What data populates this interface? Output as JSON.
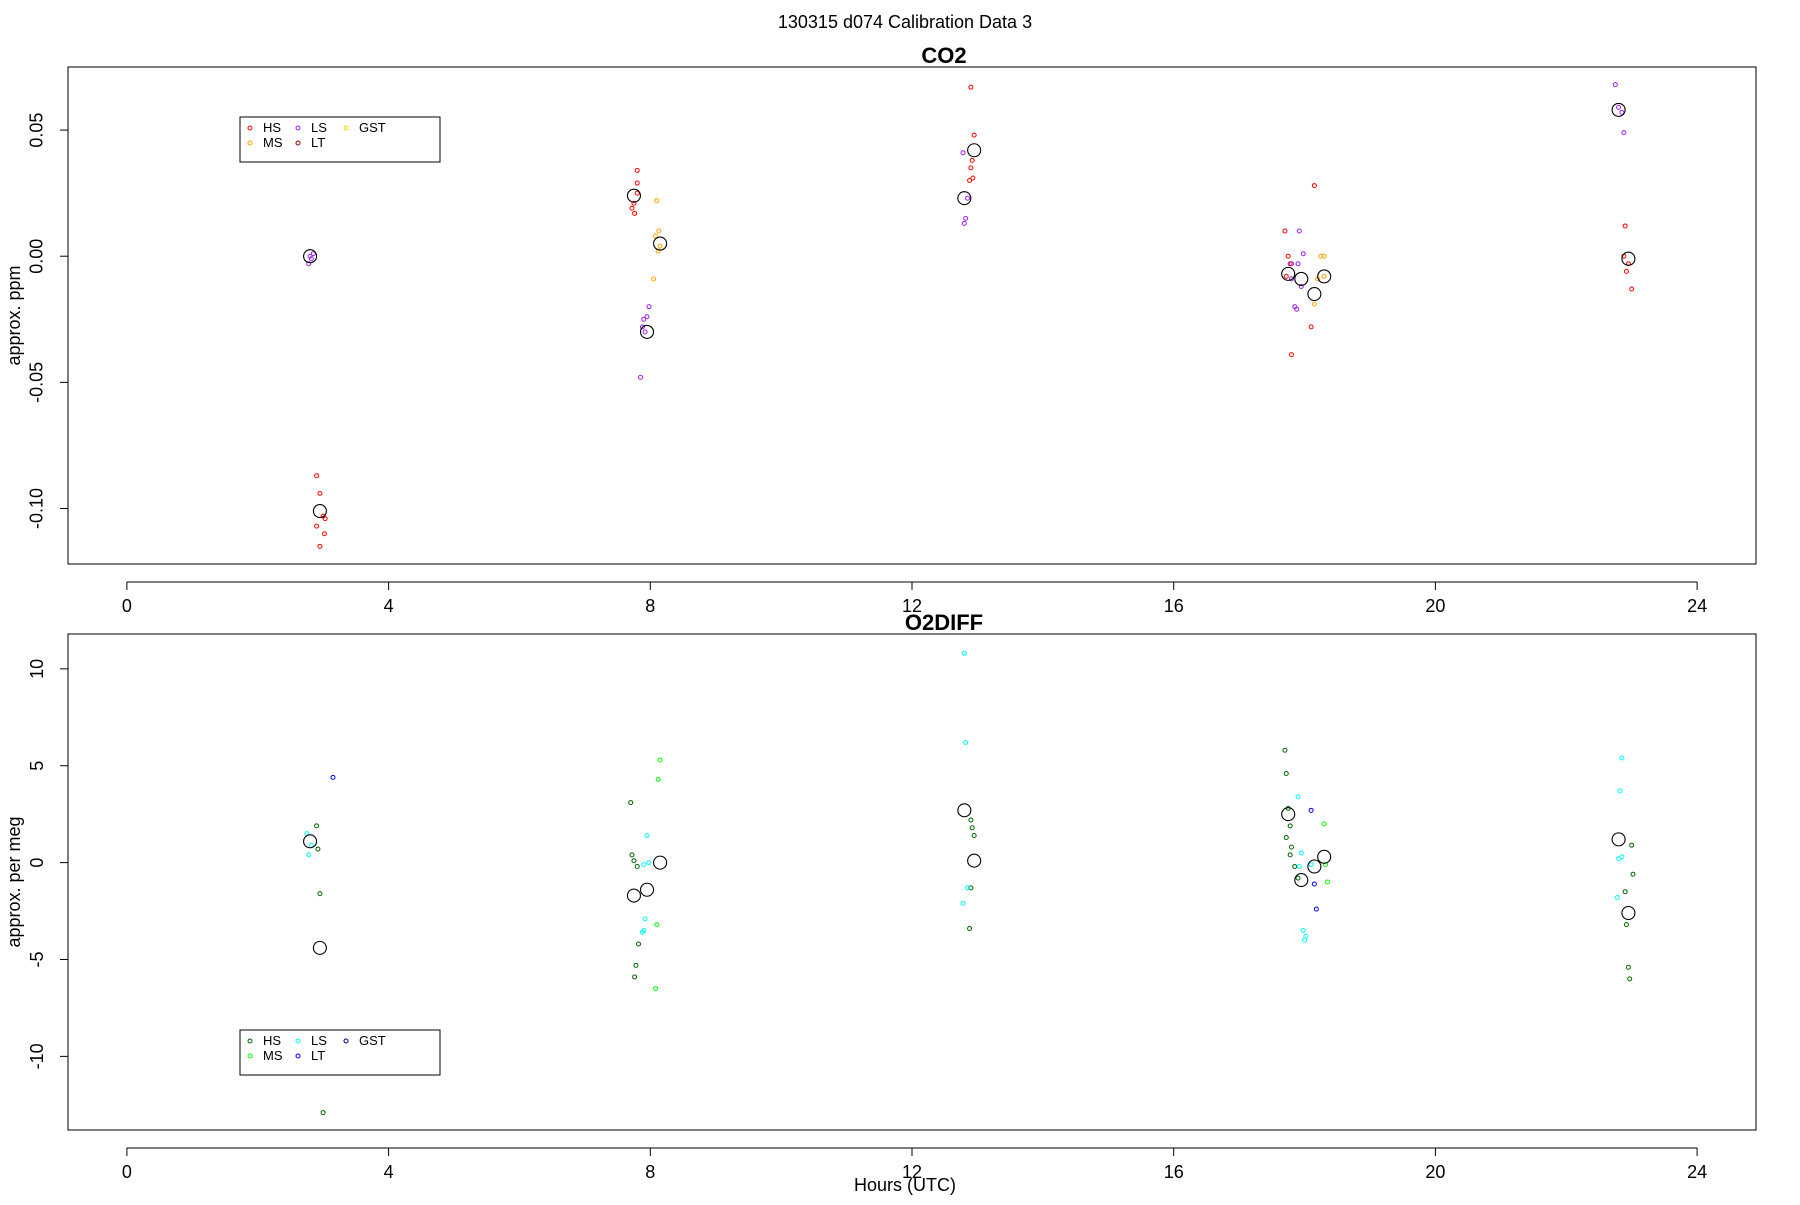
{
  "figure": {
    "title": "130315   d074   Calibration Data 3",
    "xlabel": "Hours (UTC)"
  },
  "chart_data": [
    {
      "type": "scatter",
      "title": "CO2",
      "xlabel": "",
      "ylabel": "approx. ppm",
      "xlim": [
        -0.9,
        24.9
      ],
      "ylim": [
        -0.122,
        0.075
      ],
      "xticks": [
        0,
        4,
        8,
        12,
        16,
        20,
        24
      ],
      "yticks": [
        -0.1,
        -0.05,
        0.0,
        0.05
      ],
      "ytick_labels": [
        "-0.10",
        "-0.05",
        "0.00",
        "0.05"
      ],
      "legend_position": "top-left",
      "legend": [
        {
          "name": "HS",
          "color": "#ff0000"
        },
        {
          "name": "LS",
          "color": "#a020f0"
        },
        {
          "name": "GST",
          "color": "#ffd700"
        },
        {
          "name": "MS",
          "color": "#ffa500"
        },
        {
          "name": "LT",
          "color": "#8b0000"
        }
      ],
      "series": [
        {
          "name": "HS",
          "color": "#ff0000",
          "points": [
            [
              2.9,
              -0.087
            ],
            [
              2.95,
              -0.094
            ],
            [
              3.0,
              -0.103
            ],
            [
              2.9,
              -0.107
            ],
            [
              3.02,
              -0.11
            ],
            [
              2.95,
              -0.115
            ],
            [
              3.03,
              -0.104
            ],
            [
              7.8,
              0.034
            ],
            [
              7.8,
              0.029
            ],
            [
              7.75,
              0.021
            ],
            [
              7.72,
              0.019
            ],
            [
              7.76,
              0.017
            ],
            [
              7.8,
              0.025
            ],
            [
              12.9,
              0.067
            ],
            [
              12.95,
              0.048
            ],
            [
              12.92,
              0.038
            ],
            [
              12.9,
              0.035
            ],
            [
              12.93,
              0.031
            ],
            [
              12.88,
              0.03
            ],
            [
              17.7,
              0.01
            ],
            [
              17.75,
              0.0
            ],
            [
              17.78,
              -0.003
            ],
            [
              17.72,
              -0.008
            ],
            [
              17.8,
              -0.039
            ],
            [
              18.15,
              0.028
            ],
            [
              18.1,
              -0.028
            ],
            [
              22.9,
              0.012
            ],
            [
              22.95,
              -0.003
            ],
            [
              22.92,
              -0.006
            ],
            [
              22.88,
              0.0
            ],
            [
              23.0,
              -0.013
            ]
          ]
        },
        {
          "name": "MS",
          "color": "#ffa500",
          "points": [
            [
              8.1,
              0.022
            ],
            [
              8.15,
              0.004
            ],
            [
              8.12,
              0.002
            ],
            [
              8.08,
              0.008
            ],
            [
              8.05,
              -0.009
            ],
            [
              8.13,
              0.01
            ],
            [
              18.25,
              0.0
            ],
            [
              18.3,
              0.0
            ],
            [
              18.2,
              -0.009
            ],
            [
              18.15,
              -0.019
            ],
            [
              18.3,
              -0.008
            ]
          ]
        },
        {
          "name": "LS",
          "color": "#a020f0",
          "points": [
            [
              2.8,
              0.0
            ],
            [
              2.82,
              -0.001
            ],
            [
              2.78,
              -0.003
            ],
            [
              2.85,
              0.001
            ],
            [
              7.85,
              -0.048
            ],
            [
              7.9,
              -0.025
            ],
            [
              7.95,
              -0.024
            ],
            [
              7.98,
              -0.02
            ],
            [
              7.88,
              -0.028
            ],
            [
              7.92,
              -0.03
            ],
            [
              12.8,
              0.013
            ],
            [
              12.82,
              0.015
            ],
            [
              12.85,
              0.023
            ],
            [
              12.78,
              0.041
            ],
            [
              17.8,
              -0.003
            ],
            [
              17.9,
              -0.003
            ],
            [
              17.92,
              0.01
            ],
            [
              17.85,
              -0.02
            ],
            [
              17.88,
              -0.021
            ],
            [
              17.95,
              -0.012
            ],
            [
              17.98,
              0.001
            ],
            [
              17.8,
              -0.009
            ],
            [
              22.75,
              0.068
            ],
            [
              22.8,
              0.059
            ],
            [
              22.85,
              0.057
            ],
            [
              22.88,
              0.049
            ]
          ]
        },
        {
          "name": "LT",
          "color": "#8b0000",
          "points": []
        },
        {
          "name": "GST",
          "color": "#ffd700",
          "points": []
        },
        {
          "name": "mean",
          "color": "#000000",
          "points": [
            [
              2.8,
              0.0
            ],
            [
              2.95,
              -0.101
            ],
            [
              7.75,
              0.024
            ],
            [
              7.95,
              -0.03
            ],
            [
              8.15,
              0.005
            ],
            [
              12.8,
              0.023
            ],
            [
              12.95,
              0.042
            ],
            [
              17.75,
              -0.007
            ],
            [
              17.95,
              -0.009
            ],
            [
              18.15,
              -0.015
            ],
            [
              18.3,
              -0.008
            ],
            [
              22.8,
              0.058
            ],
            [
              22.95,
              -0.001
            ]
          ]
        }
      ]
    },
    {
      "type": "scatter",
      "title": "O2DIFF",
      "xlabel": "Hours (UTC)",
      "ylabel": "approx. per meg",
      "xlim": [
        -0.9,
        24.9
      ],
      "ylim": [
        -13.8,
        11.8
      ],
      "xticks": [
        0,
        4,
        8,
        12,
        16,
        20,
        24
      ],
      "yticks": [
        -10,
        -5,
        0,
        5,
        10
      ],
      "ytick_labels": [
        "-10",
        "-5",
        "0",
        "5",
        "10"
      ],
      "legend_position": "bottom-left",
      "legend": [
        {
          "name": "HS",
          "color": "#006400"
        },
        {
          "name": "LS",
          "color": "#00ffff"
        },
        {
          "name": "GST",
          "color": "#00008b"
        },
        {
          "name": "MS",
          "color": "#00ff00"
        },
        {
          "name": "LT",
          "color": "#0000ff"
        }
      ],
      "series": [
        {
          "name": "HS",
          "color": "#006400",
          "points": [
            [
              2.9,
              1.9
            ],
            [
              2.92,
              0.7
            ],
            [
              2.95,
              -1.6
            ],
            [
              3.0,
              -12.9
            ],
            [
              7.7,
              3.1
            ],
            [
              7.72,
              0.4
            ],
            [
              7.75,
              0.1
            ],
            [
              7.8,
              -0.2
            ],
            [
              7.82,
              -4.2
            ],
            [
              7.78,
              -5.3
            ],
            [
              7.76,
              -5.9
            ],
            [
              12.9,
              2.2
            ],
            [
              12.92,
              1.8
            ],
            [
              12.95,
              1.4
            ],
            [
              12.9,
              -1.3
            ],
            [
              12.88,
              -3.4
            ],
            [
              17.7,
              5.8
            ],
            [
              17.72,
              4.6
            ],
            [
              17.75,
              2.8
            ],
            [
              17.78,
              1.9
            ],
            [
              17.72,
              1.3
            ],
            [
              17.8,
              0.8
            ],
            [
              17.78,
              0.4
            ],
            [
              17.85,
              -0.2
            ],
            [
              17.9,
              -0.8
            ],
            [
              22.9,
              -1.5
            ],
            [
              22.92,
              -3.2
            ],
            [
              22.95,
              -5.4
            ],
            [
              22.97,
              -6.0
            ],
            [
              23.0,
              0.9
            ],
            [
              23.02,
              -0.6
            ]
          ]
        },
        {
          "name": "MS",
          "color": "#00ff00",
          "points": [
            [
              8.15,
              5.3
            ],
            [
              8.12,
              4.3
            ],
            [
              8.1,
              -3.2
            ],
            [
              8.08,
              -6.5
            ],
            [
              18.3,
              2.0
            ],
            [
              18.32,
              -0.1
            ],
            [
              18.35,
              -1.0
            ]
          ]
        },
        {
          "name": "LS",
          "color": "#00ffff",
          "points": [
            [
              2.75,
              1.5
            ],
            [
              2.78,
              0.4
            ],
            [
              2.82,
              0.9
            ],
            [
              7.9,
              -0.1
            ],
            [
              7.95,
              1.4
            ],
            [
              7.98,
              0.0
            ],
            [
              7.92,
              -2.9
            ],
            [
              7.88,
              -3.6
            ],
            [
              7.9,
              -3.5
            ],
            [
              12.8,
              10.8
            ],
            [
              12.82,
              6.2
            ],
            [
              12.85,
              -1.3
            ],
            [
              12.78,
              -2.1
            ],
            [
              17.9,
              3.4
            ],
            [
              17.95,
              0.5
            ],
            [
              17.92,
              -0.2
            ],
            [
              17.98,
              -3.5
            ],
            [
              18.02,
              -3.8
            ],
            [
              18.0,
              -4.0
            ],
            [
              18.1,
              -0.1
            ],
            [
              22.85,
              5.4
            ],
            [
              22.82,
              3.7
            ],
            [
              22.8,
              0.2
            ],
            [
              22.85,
              0.3
            ],
            [
              22.78,
              -1.8
            ]
          ]
        },
        {
          "name": "LT",
          "color": "#0000ff",
          "points": [
            [
              3.15,
              4.4
            ],
            [
              18.1,
              2.7
            ],
            [
              18.15,
              -1.1
            ],
            [
              18.18,
              -2.4
            ]
          ]
        },
        {
          "name": "GST",
          "color": "#00008b",
          "points": []
        },
        {
          "name": "mean",
          "color": "#000000",
          "points": [
            [
              2.8,
              1.1
            ],
            [
              2.95,
              -4.4
            ],
            [
              7.75,
              -1.7
            ],
            [
              7.95,
              -1.4
            ],
            [
              8.15,
              0.0
            ],
            [
              12.8,
              2.7
            ],
            [
              12.95,
              0.1
            ],
            [
              17.75,
              2.5
            ],
            [
              17.95,
              -0.9
            ],
            [
              18.15,
              -0.2
            ],
            [
              18.3,
              0.3
            ],
            [
              22.8,
              1.2
            ],
            [
              22.95,
              -2.6
            ]
          ]
        }
      ]
    }
  ]
}
